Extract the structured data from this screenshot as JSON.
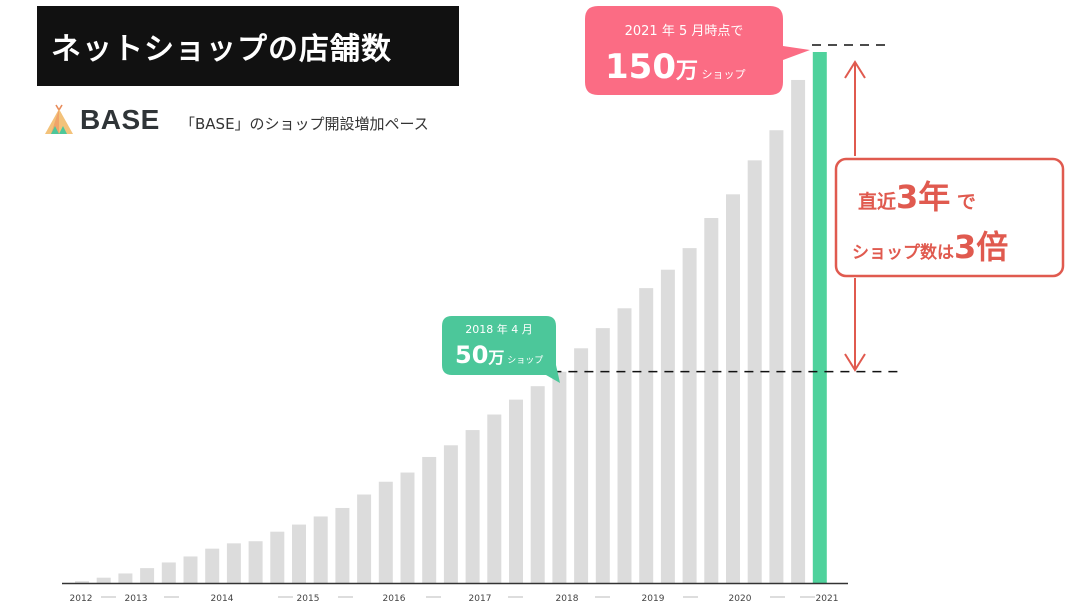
{
  "header": {
    "title": "ネットショップの店舗数"
  },
  "brand": {
    "logo_text": "BASE",
    "subtitle": "「BASE」のショップ開設増加ペース"
  },
  "colors": {
    "bar": "#dcdcdc",
    "highlight_bar": "#4fd29c",
    "pink": "#fb6c84",
    "green": "#4cc79a",
    "red_annotation": "#e05a4f"
  },
  "callouts": {
    "latest": {
      "line1": "2021 年 5 月時点で",
      "big": "150",
      "unit": "万",
      "suffix": "ショップ"
    },
    "earlier": {
      "line1": "2018 年 4 月",
      "big": "50",
      "unit": "万",
      "suffix": "ショップ"
    },
    "growth": {
      "line1_a": "直近",
      "line1_num": "3年",
      "line1_b": "で",
      "line2_a": "ショップ数は",
      "line2_num": "3倍"
    }
  },
  "chart_data": {
    "type": "bar",
    "title": "「BASE」のショップ開設増加ペース",
    "xlabel": "",
    "ylabel": "",
    "unit": "万ショップ",
    "year_labels": [
      "2012",
      "2013",
      "2014",
      "2015",
      "2016",
      "2017",
      "2018",
      "2019",
      "2020",
      "2021"
    ],
    "values": [
      0.5,
      1.5,
      2.7,
      4.2,
      5.8,
      7.5,
      9.7,
      11.2,
      11.8,
      14.5,
      16.5,
      18.8,
      21.2,
      25,
      28.6,
      31.2,
      35.6,
      38.9,
      43.2,
      47.6,
      51.8,
      55.6,
      59.7,
      66.3,
      72,
      77.6,
      83.3,
      88.5,
      94.6,
      103.1,
      109.8,
      119.4,
      127.9,
      142.1,
      150
    ],
    "highlight_index": 34,
    "ylim": [
      0,
      150
    ],
    "grid": false
  }
}
